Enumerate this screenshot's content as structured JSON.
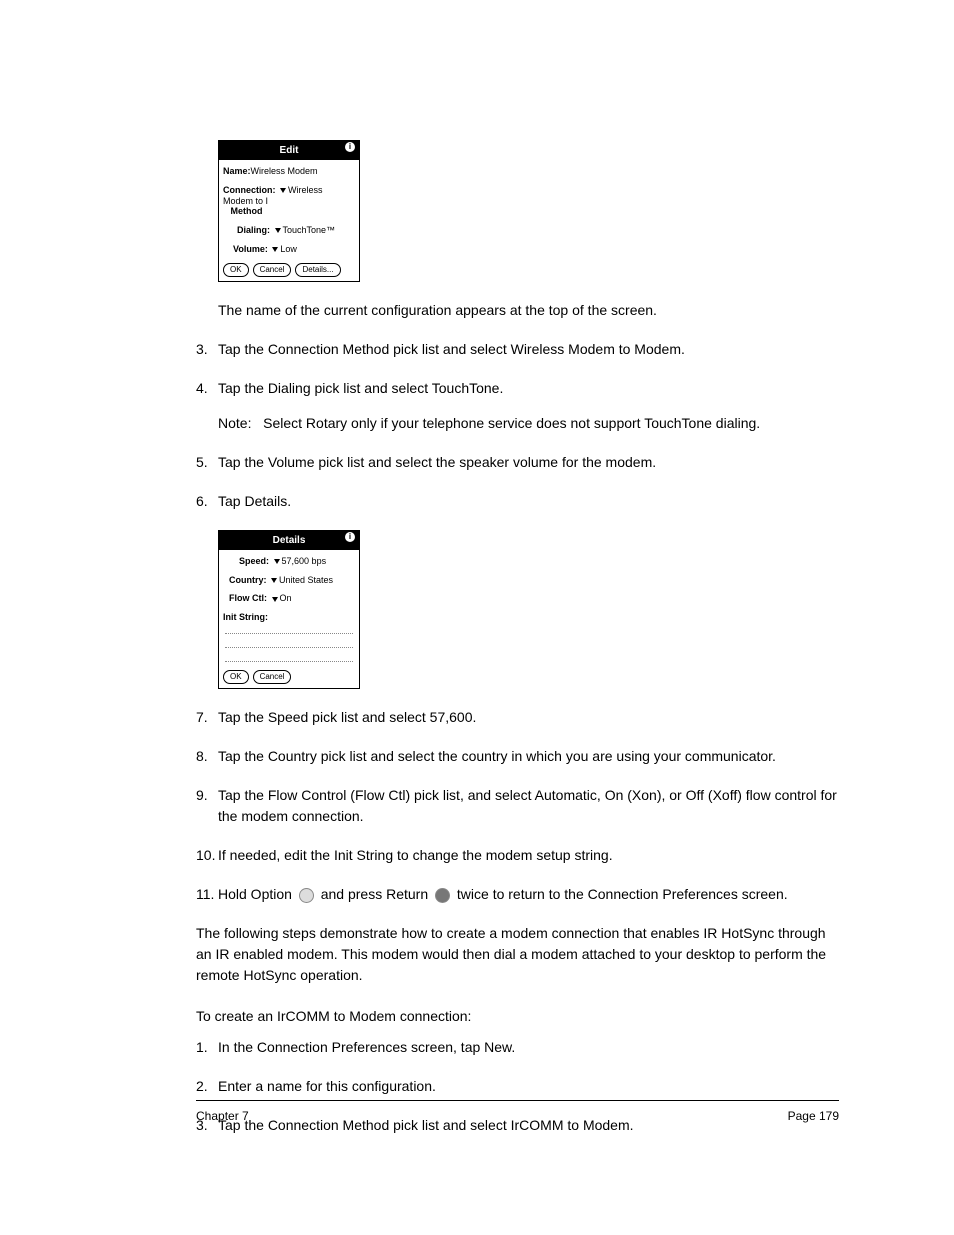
{
  "dialog1": {
    "title": "Edit",
    "info_glyph": "i",
    "rows": {
      "name_lbl": "Name:",
      "name_val": "Wireless Modem",
      "conn_lbl": "Connection:",
      "conn_val": "Wireless Modem to I",
      "method_lbl": "Method",
      "dialing_lbl": "Dialing:",
      "dialing_val": "TouchTone™",
      "volume_lbl": "Volume:",
      "volume_val": "Low"
    },
    "buttons": {
      "ok": "OK",
      "cancel": "Cancel",
      "details": "Details..."
    }
  },
  "dialog2": {
    "title": "Details",
    "info_glyph": "i",
    "rows": {
      "speed_lbl": "Speed:",
      "speed_val": "57,600 bps",
      "country_lbl": "Country:",
      "country_val": "United States",
      "flow_lbl": "Flow Ctl:",
      "flow_val": "On",
      "init_lbl": "Init String:"
    },
    "buttons": {
      "ok": "OK",
      "cancel": "Cancel"
    }
  },
  "lead_text": "The name of the current configuration appears at the top of the screen.",
  "steps_a": [
    {
      "n": "3.",
      "t": "Tap the Connection Method pick list and select Wireless Modem to Modem."
    },
    {
      "n": "4.",
      "t": "Tap the Dialing pick list and select TouchTone.",
      "note_lbl": "Note:",
      "note": "Select Rotary only if your telephone service does not support TouchTone dialing."
    },
    {
      "n": "5.",
      "t": "Tap the Volume pick list and select the speaker volume for the modem."
    },
    {
      "n": "6.",
      "t": "Tap Details."
    }
  ],
  "steps_b": [
    {
      "n": "7.",
      "t": "Tap the Speed pick list and select 57,600."
    },
    {
      "n": "8.",
      "t": "Tap the Country pick list and select the country in which you are using your communicator."
    },
    {
      "n": "9.",
      "t": "Tap the Flow Control (Flow Ctl) pick list, and select Automatic, On (Xon), or Off (Xoff) flow control for the modem connection."
    },
    {
      "n": "10.",
      "t": "If needed, edit the Init String to change the modem setup string."
    }
  ],
  "step11": {
    "n": "11.",
    "pre": "Hold Option",
    "mid": "and press Return",
    "post": "twice to return to the Connection Preferences screen."
  },
  "paragraph": "The following steps demonstrate how to create a modem connection that enables IR HotSync through an IR enabled modem. This modem would then dial a modem attached to your desktop to perform the remote HotSync operation.",
  "section_title": "To create an IrCOMM to Modem connection:",
  "steps_c": [
    {
      "n": "1.",
      "t": "In the Connection Preferences screen, tap New."
    },
    {
      "n": "2.",
      "t": "Enter a name for this configuration."
    },
    {
      "n": "3.",
      "t": "Tap the Connection Method pick list and select IrCOMM to Modem."
    }
  ],
  "footer": {
    "left": "Chapter 7",
    "right": "Page 179"
  }
}
